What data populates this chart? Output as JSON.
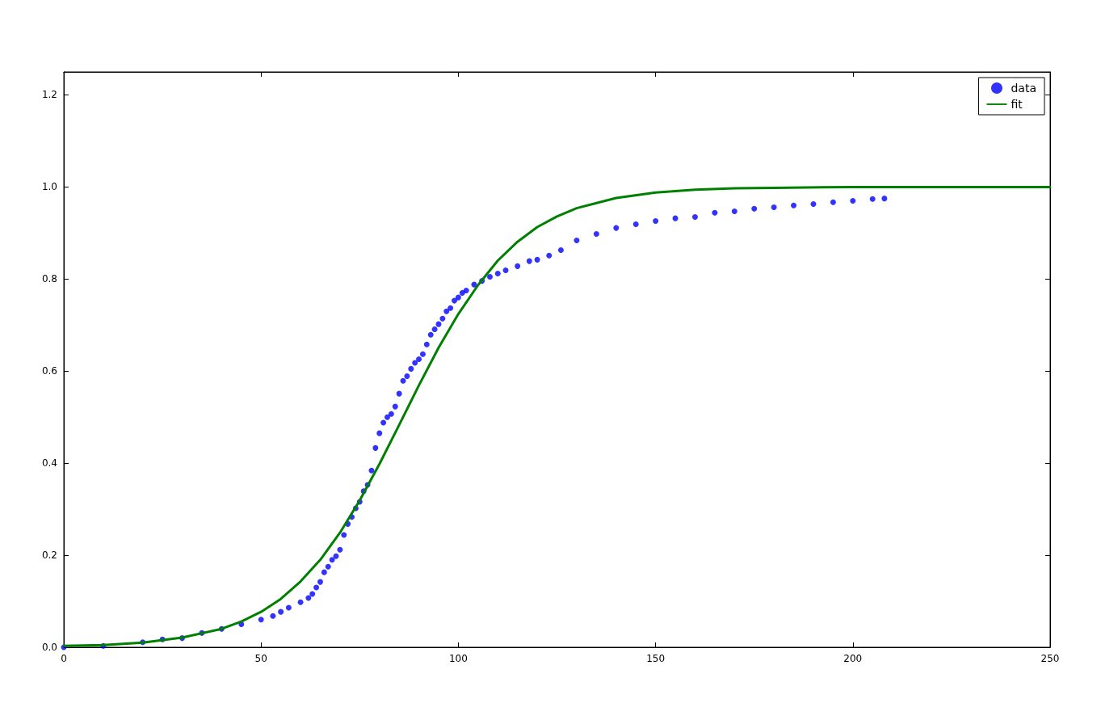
{
  "chart_data": {
    "type": "scatter",
    "xlim": [
      0,
      250
    ],
    "xticks": [
      0,
      50,
      100,
      150,
      200,
      250
    ],
    "ylim": [
      0,
      1.25
    ],
    "yticks": [
      {
        "value": 0,
        "label": "0.0"
      },
      {
        "value": 0.2,
        "label": "0.2"
      },
      {
        "value": 0.4,
        "label": "0.4"
      },
      {
        "value": 0.6,
        "label": "0.6"
      },
      {
        "value": 0.8,
        "label": "0.8"
      },
      {
        "value": 1.0,
        "label": "1.0"
      },
      {
        "value": 1.2,
        "label": "1.2"
      }
    ],
    "grid": false,
    "legend": "top right",
    "series": [
      {
        "name": "data",
        "marker": "circle",
        "color": "#0000ff",
        "x": [
          0,
          10,
          20,
          25,
          30,
          35,
          40,
          45,
          50,
          53,
          55,
          57,
          60,
          62,
          63,
          64,
          65,
          66,
          67,
          68,
          69,
          70,
          71,
          72,
          73,
          74,
          75,
          76,
          77,
          78,
          79,
          80,
          81,
          82,
          83,
          84,
          85,
          86,
          87,
          88,
          89,
          90,
          91,
          92,
          93,
          94,
          95,
          96,
          97,
          98,
          99,
          100,
          101,
          102,
          104,
          106,
          108,
          110,
          112,
          115,
          118,
          120,
          123,
          126,
          130,
          135,
          140,
          145,
          150,
          155,
          160,
          165,
          170,
          175,
          180,
          185,
          190,
          195,
          200,
          205,
          208
        ],
        "values": [
          0.0,
          0.003,
          0.011,
          0.017,
          0.02,
          0.031,
          0.04,
          0.05,
          0.06,
          0.068,
          0.077,
          0.086,
          0.098,
          0.107,
          0.116,
          0.13,
          0.142,
          0.163,
          0.175,
          0.19,
          0.198,
          0.212,
          0.244,
          0.268,
          0.283,
          0.302,
          0.316,
          0.339,
          0.353,
          0.384,
          0.433,
          0.465,
          0.488,
          0.5,
          0.507,
          0.523,
          0.551,
          0.579,
          0.589,
          0.605,
          0.618,
          0.626,
          0.637,
          0.658,
          0.679,
          0.691,
          0.702,
          0.714,
          0.73,
          0.737,
          0.753,
          0.76,
          0.77,
          0.775,
          0.788,
          0.796,
          0.805,
          0.812,
          0.819,
          0.828,
          0.839,
          0.842,
          0.851,
          0.863,
          0.884,
          0.898,
          0.911,
          0.919,
          0.926,
          0.932,
          0.935,
          0.944,
          0.947,
          0.953,
          0.956,
          0.96,
          0.963,
          0.967,
          0.97,
          0.974,
          0.975
        ]
      },
      {
        "name": "fit",
        "type": "line",
        "marker": "none",
        "color": "#008000",
        "line_style": "solid",
        "x": [
          0,
          10,
          20,
          30,
          40,
          45,
          50,
          55,
          60,
          65,
          70,
          75,
          80,
          85,
          90,
          95,
          100,
          105,
          110,
          115,
          120,
          125,
          130,
          140,
          150,
          160,
          170,
          180,
          200,
          220,
          250
        ],
        "values": [
          0.003,
          0.005,
          0.01,
          0.021,
          0.04,
          0.056,
          0.077,
          0.105,
          0.143,
          0.19,
          0.249,
          0.319,
          0.398,
          0.483,
          0.569,
          0.651,
          0.724,
          0.787,
          0.84,
          0.881,
          0.913,
          0.936,
          0.954,
          0.976,
          0.988,
          0.994,
          0.997,
          0.998,
          1.0,
          1.0,
          1.0
        ]
      }
    ]
  }
}
